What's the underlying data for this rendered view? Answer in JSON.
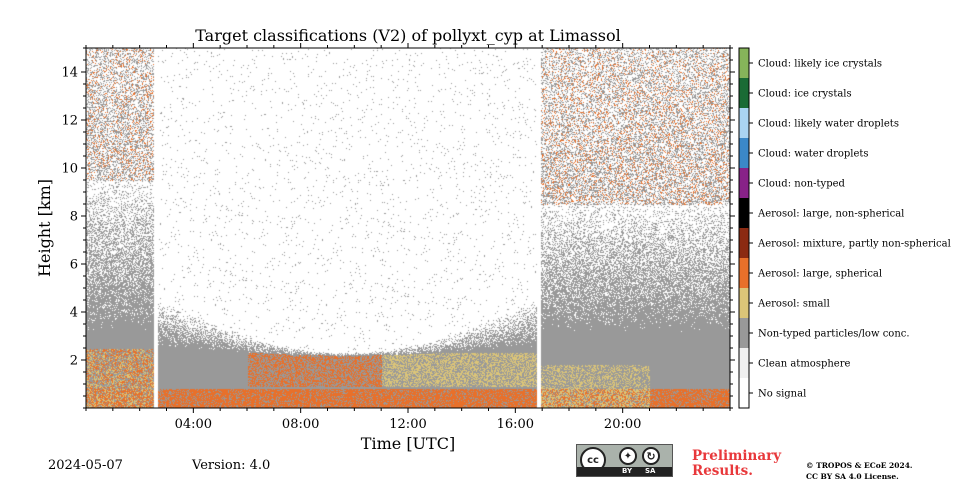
{
  "chart_data": {
    "type": "heatmap",
    "title": "Target classifications (V2) of pollyxt_cyp at Limassol",
    "xlabel": "Time [UTC]",
    "ylabel": "Height [km]",
    "xlim_hours": [
      0,
      24
    ],
    "ylim_km": [
      0,
      15
    ],
    "x_ticks": [
      {
        "value": 4,
        "label": "04:00"
      },
      {
        "value": 8,
        "label": "08:00"
      },
      {
        "value": 12,
        "label": "12:00"
      },
      {
        "value": 16,
        "label": "16:00"
      },
      {
        "value": 20,
        "label": "20:00"
      }
    ],
    "y_ticks": [
      {
        "value": 2,
        "label": "2"
      },
      {
        "value": 4,
        "label": "4"
      },
      {
        "value": 6,
        "label": "6"
      },
      {
        "value": 8,
        "label": "8"
      },
      {
        "value": 10,
        "label": "10"
      },
      {
        "value": 12,
        "label": "12"
      },
      {
        "value": 14,
        "label": "14"
      }
    ],
    "classes": [
      {
        "label": "No signal",
        "color": "#ffffff"
      },
      {
        "label": "Clean atmosphere",
        "color": "#f0f0f0"
      },
      {
        "label": "Non-typed particles/low conc.",
        "color": "#999999"
      },
      {
        "label": "Aerosol: small",
        "color": "#dcc578"
      },
      {
        "label": "Aerosol: large, spherical",
        "color": "#e8702a"
      },
      {
        "label": "Aerosol: mixture, partly non-spherical",
        "color": "#8b2a12"
      },
      {
        "label": "Aerosol: large, non-spherical",
        "color": "#000000"
      },
      {
        "label": "Cloud: non-typed",
        "color": "#882288"
      },
      {
        "label": "Cloud: water droplets",
        "color": "#3b88c8"
      },
      {
        "label": "Cloud: likely water droplets",
        "color": "#aad4f2"
      },
      {
        "label": "Cloud: ice crystals",
        "color": "#1a6b35"
      },
      {
        "label": "Cloud: likely ice crystals",
        "color": "#86b45a"
      }
    ],
    "data_gaps_hours": [
      2.6,
      16.85
    ],
    "legend_position": "right"
  },
  "footer": {
    "date": "2024-05-07",
    "version": "Version: 4.0",
    "license_badge": {
      "cc": "cc",
      "by": "BY",
      "sa": "SA"
    },
    "preliminary_line1": "Preliminary",
    "preliminary_line2": "Results.",
    "copyright_line1": "© TROPOS & ECoE 2024.",
    "copyright_line2": "CC BY SA 4.0 License."
  }
}
